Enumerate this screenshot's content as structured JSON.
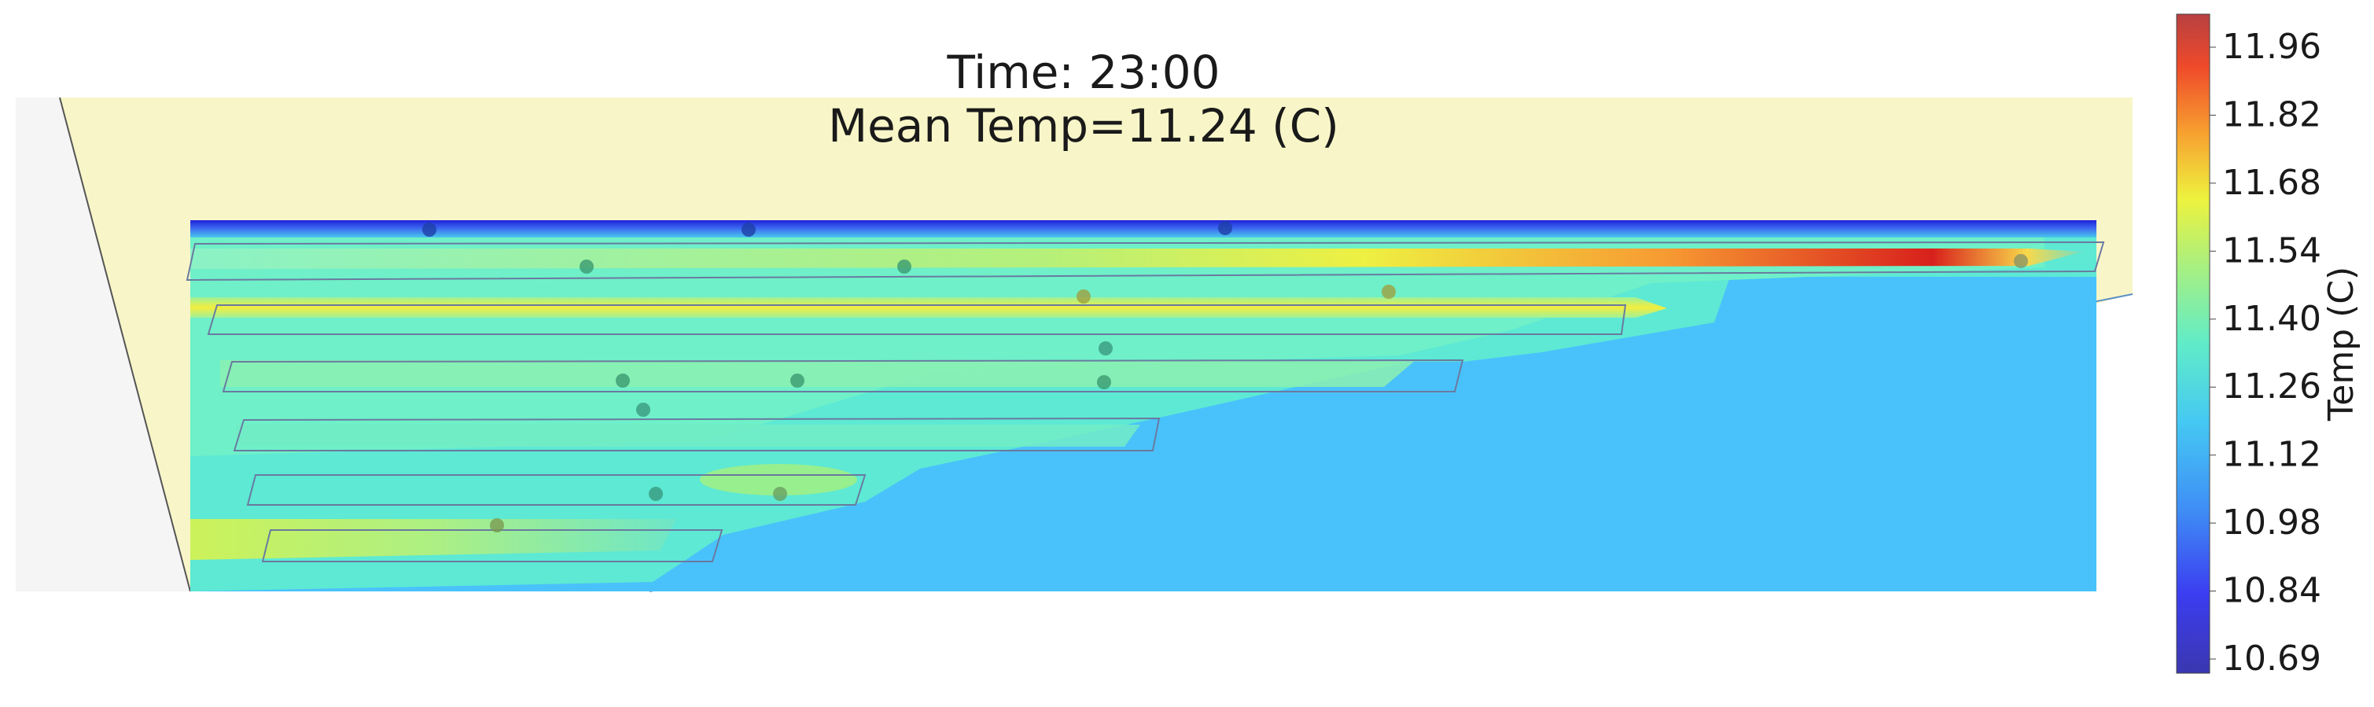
{
  "chart_data": {
    "type": "heatmap",
    "title_lines": [
      "Time: 23:00",
      "Mean Temp=11.24 (C)"
    ],
    "time": "23:00",
    "mean_temp_c": 11.24,
    "colorbar": {
      "label": "Temp (C)",
      "ticks": [
        "11.96",
        "11.82",
        "11.68",
        "11.54",
        "11.40",
        "11.26",
        "11.12",
        "10.98",
        "10.84",
        "10.69"
      ],
      "range": [
        10.69,
        12.03
      ],
      "colormap": "jet"
    },
    "bands": [
      {
        "row": 1,
        "peak_temp": 12.03,
        "base_temp": 11.26
      },
      {
        "row": 2,
        "peak_temp": 11.56,
        "base_temp": 11.4
      },
      {
        "row": 3,
        "peak_temp": 11.33,
        "base_temp": 11.22
      },
      {
        "row": 4,
        "peak_temp": 11.26,
        "base_temp": 11.19
      },
      {
        "row": 5,
        "peak_temp": 11.4,
        "base_temp": 11.19
      },
      {
        "row": 6,
        "peak_temp": 11.47,
        "base_temp": 11.22
      }
    ],
    "background_temp": 11.08,
    "top_edge_temp": 10.75,
    "sensor_count": 20
  },
  "colors": {
    "background_fill": "#f8f6c8",
    "outline": "#555555",
    "accent": "#49c2fb"
  }
}
